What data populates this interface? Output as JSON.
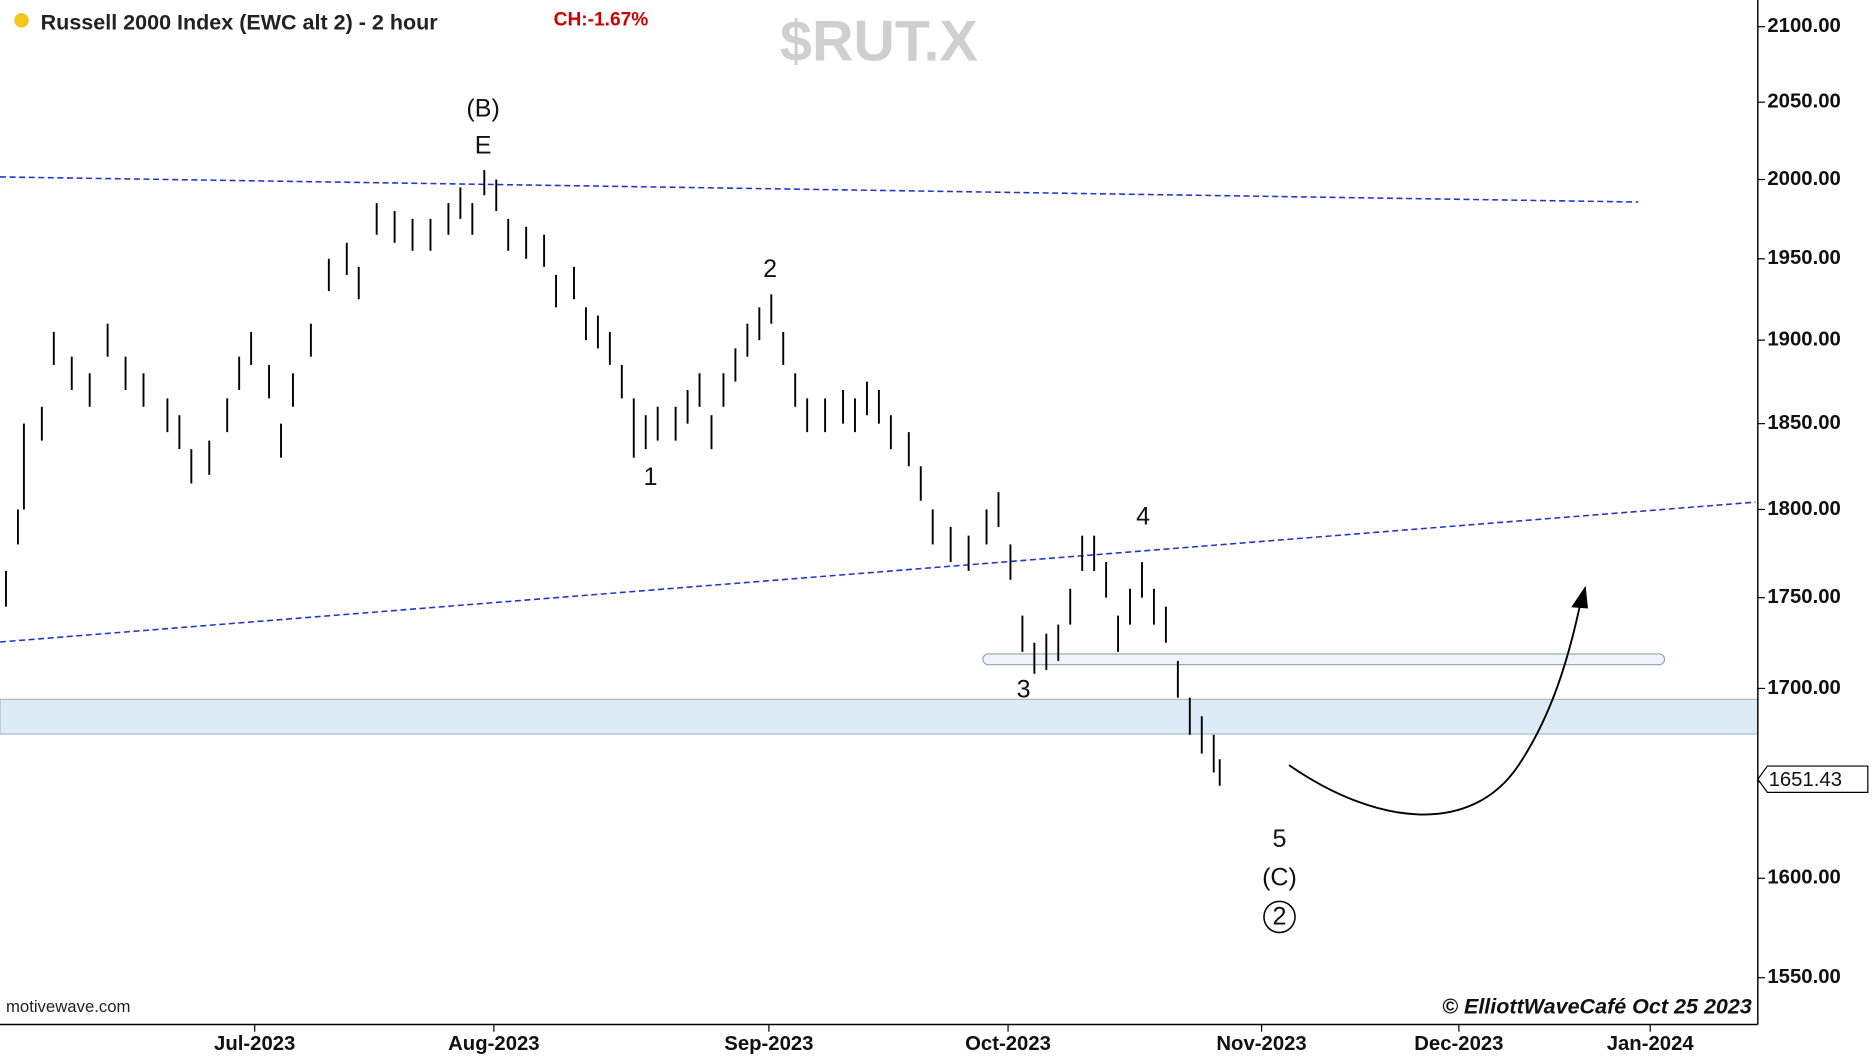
{
  "chart_data": {
    "type": "ohlc",
    "title": "Russell 2000 Index (EWC alt 2) - 2 hour",
    "change_label": "CH:-1.67%",
    "symbol": "$RUT.X",
    "source": "motivewave.com",
    "credit": "© ElliottWaveCafé Oct 25 2023",
    "color": "#000000",
    "log_scale": true,
    "grid": false,
    "xlim": [
      0,
      147
    ],
    "xticks": [
      {
        "value": 21.3,
        "label": "Jul-2023"
      },
      {
        "value": 41.3,
        "label": "Aug-2023"
      },
      {
        "value": 64.3,
        "label": "Sep-2023"
      },
      {
        "value": 84.3,
        "label": "Oct-2023"
      },
      {
        "value": 105.5,
        "label": "Nov-2023"
      },
      {
        "value": 122,
        "label": "Dec-2023"
      },
      {
        "value": 138,
        "label": "Jan-2024"
      }
    ],
    "ylim": [
      1527,
      2118
    ],
    "yticks": [
      {
        "value": 1550,
        "label": "1550.00"
      },
      {
        "value": 1600,
        "label": "1600.00"
      },
      {
        "value": 1650,
        "label": "1650.00"
      },
      {
        "value": 1700,
        "label": "1700.00"
      },
      {
        "value": 1750,
        "label": "1750.00"
      },
      {
        "value": 1800,
        "label": "1800.00"
      },
      {
        "value": 1850,
        "label": "1850.00"
      },
      {
        "value": 1900,
        "label": "1900.00"
      },
      {
        "value": 1950,
        "label": "1950.00"
      },
      {
        "value": 2000,
        "label": "2000.00"
      },
      {
        "value": 2050,
        "label": "2050.00"
      },
      {
        "value": 2100,
        "label": "2100.00"
      }
    ],
    "last_price": 1651.43,
    "wave_labels": [
      "(B)",
      "E",
      "1",
      "2",
      "3",
      "4",
      "5",
      "(C)",
      "2"
    ],
    "x": [
      0.5,
      1.5,
      2,
      3.5,
      4.5,
      6,
      7.5,
      9,
      10.5,
      12,
      14,
      15,
      16,
      17.5,
      19,
      20,
      21,
      22.5,
      23.5,
      24.5,
      26,
      27.5,
      29,
      30,
      31.5,
      33,
      34.5,
      36,
      37.5,
      38.5,
      39.5,
      40.5,
      41.5,
      42.5,
      44,
      45.5,
      46.5,
      48,
      49,
      50,
      51,
      52,
      53,
      54,
      55,
      56.5,
      57.5,
      58.5,
      59.5,
      60.5,
      61.5,
      62.5,
      63.5,
      64.5,
      65.5,
      66.5,
      67.5,
      69,
      70.5,
      71.5,
      72.5,
      73.5,
      74.5,
      76,
      77,
      78,
      79.5,
      81,
      82.5,
      83.5,
      84.5,
      85.5,
      86.5,
      87.5,
      88.5,
      89.5,
      90.5,
      91.5,
      92.5,
      93.5,
      94.5,
      95.5,
      96.5,
      97.5,
      98.5,
      99.5,
      100.5,
      101.5,
      102
    ],
    "high": [
      1765,
      1800,
      1850,
      1860,
      1905,
      1890,
      1880,
      1910,
      1890,
      1880,
      1865,
      1855,
      1835,
      1840,
      1865,
      1890,
      1905,
      1885,
      1850,
      1880,
      1910,
      1950,
      1960,
      1945,
      1985,
      1980,
      1975,
      1975,
      1985,
      1995,
      1985,
      2006,
      2000,
      1975,
      1970,
      1965,
      1940,
      1945,
      1920,
      1915,
      1905,
      1885,
      1865,
      1855,
      1860,
      1860,
      1870,
      1880,
      1855,
      1880,
      1895,
      1910,
      1920,
      1928,
      1905,
      1880,
      1865,
      1865,
      1870,
      1865,
      1875,
      1870,
      1855,
      1845,
      1825,
      1800,
      1790,
      1785,
      1800,
      1810,
      1780,
      1740,
      1725,
      1730,
      1735,
      1755,
      1785,
      1785,
      1770,
      1740,
      1755,
      1770,
      1755,
      1745,
      1715,
      1695,
      1685,
      1675,
      1662
    ],
    "low": [
      1745,
      1780,
      1800,
      1840,
      1885,
      1870,
      1860,
      1890,
      1870,
      1860,
      1845,
      1835,
      1815,
      1820,
      1845,
      1870,
      1885,
      1865,
      1830,
      1860,
      1890,
      1930,
      1940,
      1925,
      1965,
      1960,
      1955,
      1955,
      1965,
      1975,
      1965,
      1990,
      1980,
      1955,
      1950,
      1945,
      1920,
      1925,
      1900,
      1895,
      1885,
      1865,
      1830,
      1835,
      1840,
      1840,
      1850,
      1860,
      1835,
      1860,
      1875,
      1890,
      1900,
      1910,
      1885,
      1860,
      1845,
      1845,
      1850,
      1845,
      1855,
      1850,
      1835,
      1825,
      1805,
      1780,
      1770,
      1765,
      1780,
      1790,
      1760,
      1720,
      1708,
      1710,
      1715,
      1735,
      1765,
      1765,
      1750,
      1720,
      1735,
      1750,
      1735,
      1725,
      1695,
      1675,
      1665,
      1655,
      1648
    ]
  }
}
